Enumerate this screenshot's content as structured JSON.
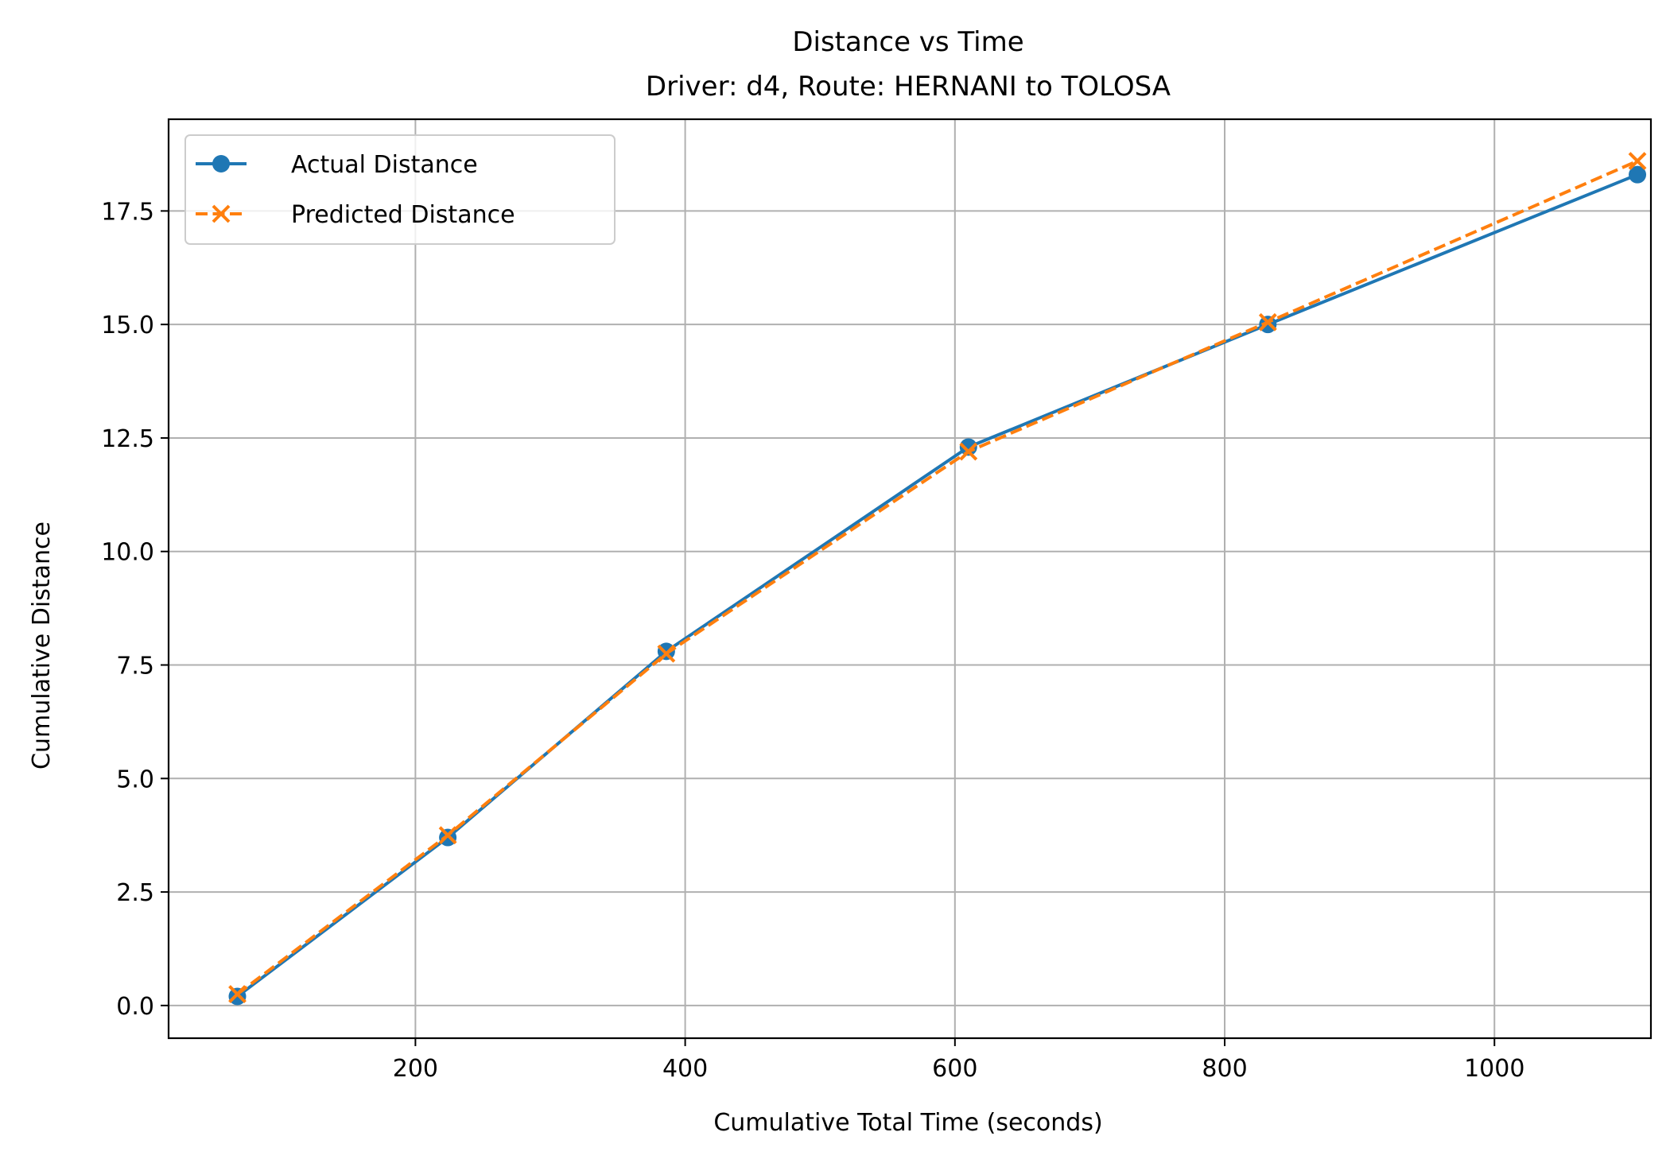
{
  "chart_data": {
    "type": "line",
    "title": "Distance vs Time",
    "subtitle": "Driver: d4, Route: HERNANI to TOLOSA",
    "xlabel": "Cumulative Total Time (seconds)",
    "ylabel": "Cumulative Distance",
    "xlim": [
      17,
      1116
    ],
    "ylim": [
      -0.72,
      19.52
    ],
    "xticks": [
      200,
      400,
      600,
      800,
      1000
    ],
    "yticks": [
      0.0,
      2.5,
      5.0,
      7.5,
      10.0,
      12.5,
      15.0,
      17.5
    ],
    "xtick_labels": [
      "200",
      "400",
      "600",
      "800",
      "1000"
    ],
    "ytick_labels": [
      "0.0",
      "2.5",
      "5.0",
      "7.5",
      "10.0",
      "12.5",
      "15.0",
      "17.5"
    ],
    "grid": true,
    "legend_position": "top-left",
    "series": [
      {
        "name": "Actual Distance",
        "color": "#1f77b4",
        "line_style": "solid",
        "marker": "circle",
        "x": [
          68,
          224,
          386,
          610,
          832,
          1106
        ],
        "y": [
          0.2,
          3.7,
          7.8,
          12.3,
          15.0,
          18.3
        ]
      },
      {
        "name": "Predicted Distance",
        "color": "#ff7f0e",
        "line_style": "dashed",
        "marker": "x",
        "x": [
          68,
          224,
          386,
          610,
          832,
          1106
        ],
        "y": [
          0.25,
          3.75,
          7.75,
          12.2,
          15.05,
          18.6
        ]
      }
    ]
  }
}
